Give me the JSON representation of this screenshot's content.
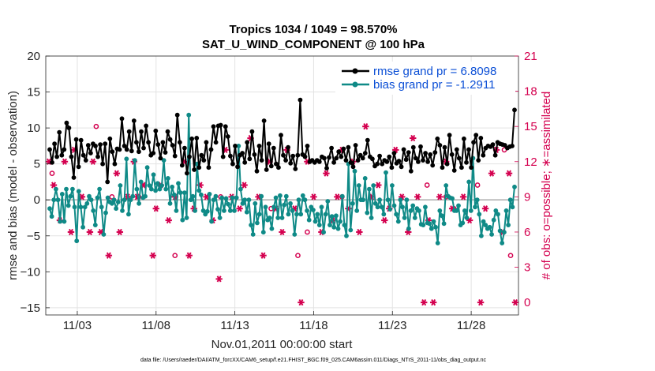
{
  "chart_data": {
    "type": "line",
    "title": "Tropics 1034 / 1049 = 98.570%",
    "subtitle": "SAT_U_WIND_COMPONENT @ 100 hPa",
    "xlabel": "Nov.01,2011 00:00:00 start",
    "ylabel": "rmse and bias (model - observation)",
    "y2label": "# of obs: o=possible; ∗=assimilated",
    "footnote": "data file: /Users/raeder/DAI/ATM_forcXX/CAM6_setup/f.e21.FHIST_BGC.f09_025.CAM6assim.011/Diags_NTrS_2011-11/obs_diag_output.nc",
    "xlim": [
      1.0,
      31.0
    ],
    "ylim": [
      -16,
      20
    ],
    "y2lim": [
      -1.0667,
      21
    ],
    "x_ticks": [
      3,
      8,
      13,
      18,
      23,
      28
    ],
    "x_tick_labels": [
      "11/03",
      "11/08",
      "11/13",
      "11/18",
      "11/23",
      "11/28"
    ],
    "y_ticks": [
      -15,
      -10,
      -5,
      0,
      5,
      10,
      15,
      20
    ],
    "y_tick_labels": [
      "−15",
      "−10",
      "−5",
      "0",
      "5",
      "10",
      "15",
      "20"
    ],
    "y2_ticks": [
      0,
      3,
      6,
      9,
      12,
      15,
      18,
      21
    ],
    "y2_tick_labels": [
      "0",
      "3",
      "6",
      "9",
      "12",
      "15",
      "18",
      "21"
    ],
    "grid": true,
    "legend_position": "top-right",
    "colors": {
      "rmse": "#000000",
      "bias": "#0f8a87",
      "obs": "#d4004f",
      "zero_line": "#b3b3b3",
      "legend_text": "#0b4fd6"
    },
    "series": [
      {
        "name": "rmse grand pr = 6.8098",
        "values": [
          7.0,
          5.2,
          7.8,
          6.0,
          9.4,
          6.2,
          7.0,
          10.7,
          10.0,
          6.0,
          3.1,
          8.4,
          4.6,
          8.3,
          6.2,
          5.5,
          7.6,
          6.5,
          7.8,
          7.5,
          6.0,
          7.7,
          5.0,
          7.8,
          2.5,
          8.5,
          6.7,
          5.0,
          7.1,
          7.0,
          11.3,
          7.5,
          7.0,
          9.5,
          6.8,
          11.0,
          8.0,
          6.7,
          9.5,
          7.2,
          10.3,
          8.0,
          6.2,
          6.5,
          9.6,
          7.7,
          5.8,
          8.0,
          6.6,
          9.5,
          8.4,
          7.6,
          6.1,
          11.8,
          8.0,
          4.8,
          7.2,
          3.7,
          6.0,
          8.5,
          4.2,
          8.6,
          4.5,
          6.2,
          5.5,
          8.0,
          4.5,
          7.0,
          10.2,
          8.0,
          10.3,
          10.4,
          6.0,
          10.2,
          8.8,
          6.1,
          5.0,
          7.5,
          4.6,
          6.2,
          6.5,
          5.2,
          8.0,
          5.7,
          9.5,
          6.3,
          4.0,
          7.5,
          5.5,
          11.0,
          4.2,
          7.8,
          4.7,
          7.2,
          5.0,
          4.5,
          9.0,
          6.2,
          5.5,
          7.3,
          5.1,
          6.1,
          4.3,
          6.2,
          13.9,
          6.3,
          6.0,
          7.5,
          5.3,
          5.5,
          5.2,
          5.5,
          5.3,
          6.0,
          5.8,
          4.4,
          5.9,
          7.2,
          5.2,
          5.8,
          6.7,
          6.0,
          7.1,
          5.5,
          7.3,
          5.2,
          4.6,
          7.6,
          5.5,
          6.2,
          5.8,
          6.5,
          8.3,
          6.0,
          5.7,
          4.7,
          5.0,
          6.1,
          5.0,
          5.5,
          5.3,
          6.0,
          4.5,
          6.5,
          5.1,
          5.4,
          4.6,
          7.0,
          5.6,
          6.6,
          4.0,
          7.3,
          5.8,
          5.3,
          7.4,
          5.5,
          6.5,
          5.3,
          6.3,
          4.8,
          6.6,
          8.5,
          7.6,
          4.5,
          7.3,
          5.0,
          9.0,
          6.3,
          4.1,
          7.0,
          5.8,
          4.5,
          8.5,
          5.2,
          7.0,
          4.5,
          8.0,
          9.0,
          5.5,
          8.6,
          6.2,
          7.2,
          7.5,
          7.4,
          7.7,
          6.2,
          8.0,
          7.8,
          7.7,
          7.6,
          7.2,
          7.4,
          7.5,
          12.5
        ]
      },
      {
        "name": "bias grand pr = -1.2911",
        "values": [
          -1.2,
          -2.3,
          0.0,
          1.5,
          0.0,
          -3.0,
          0.8,
          -3.0,
          1.5,
          -0.8,
          0.5,
          1.5,
          -1.0,
          -5.7,
          1.2,
          -1.0,
          -3.8,
          -1.0,
          -0.5,
          0.5,
          0.0,
          -1.5,
          -3.5,
          0.3,
          1.5,
          -1.0,
          -4.8,
          -1.8,
          0.3,
          -0.3,
          -0.5,
          0.0,
          -1.2,
          -0.3,
          2.0,
          -1.5,
          0.0,
          5.7,
          -2.0,
          0.0,
          0.5,
          5.5,
          1.5,
          -0.5,
          2.5,
          0.3,
          0.5,
          4.5,
          2.0,
          1.5,
          3.5,
          1.3,
          2.3,
          1.5,
          2.0,
          5.5,
          1.5,
          3.0,
          -0.5,
          1.8,
          0.7,
          -1.5,
          2.3,
          1.0,
          -2.8,
          1.0,
          -2.5,
          11.8,
          0.0,
          0.5,
          -1.5,
          5.0,
          1.3,
          0.7,
          -1.5,
          -2.0,
          -1.6,
          0.8,
          -3.0,
          0.0,
          0.5,
          -1.3,
          -2.5,
          0.3,
          -1.5,
          0.2,
          -0.6,
          -1.5,
          0.3,
          -1.5,
          0.3,
          7.5,
          1.5,
          -0.5,
          0.0,
          -1.7,
          0.0,
          -3.5,
          -4.8,
          -0.5,
          -3.2,
          -2.0,
          0.5,
          -4.5,
          -1.0,
          -2.8,
          -2.5,
          -4.0,
          -1.0,
          0.3,
          -2.5,
          0.6,
          -2.5,
          -0.7,
          0.5,
          -2.0,
          -0.5,
          -1.5,
          -4.8,
          -2.0,
          0.0,
          -2.0,
          0.6,
          0.0,
          -1.5,
          -2.8,
          -1.0,
          -1.4,
          -3.0,
          -2.0,
          -3.5,
          -1.0,
          -4.5,
          -2.0,
          -0.2,
          -3.5,
          -2.3,
          -3.8,
          -2.2,
          -4.0,
          -3.0,
          0.5,
          -3.5,
          -5.0,
          5.0,
          -4.2,
          -0.5,
          4.0,
          -1.5,
          2.0,
          0.0,
          0.0,
          3.0,
          -1.8,
          1.5,
          -2.5,
          2.0,
          -0.5,
          -1.0,
          0.0,
          -1.0,
          -2.0,
          3.8,
          0.0,
          -1.3,
          2.0,
          -0.8,
          -2.0,
          -3.0,
          0.0,
          -1.0,
          -2.5,
          0.0,
          -4.0,
          -1.5,
          -0.8,
          -2.5,
          -1.2,
          -1.5,
          -3.4,
          -3.5,
          -1.0,
          -3.2,
          -3.3,
          -4.0,
          -3.0,
          -3.8,
          -6.0,
          -1.5,
          -2.2,
          -3.3,
          2.0,
          0.5,
          0.3,
          0.2,
          -1.5,
          -1.5,
          -0.8,
          -3.5,
          -3.2,
          -1.5,
          -2.5,
          2.5,
          -1.5,
          5.8,
          -1.0,
          0.0,
          -2.0,
          -5.0,
          -3.0,
          -3.5,
          -4.0,
          -3.8,
          -4.8,
          -2.8,
          -1.5,
          -2.0,
          -4.3,
          -6.0,
          -4.5,
          -1.5,
          -3.5,
          0.0,
          -1.0,
          1.8
        ]
      }
    ],
    "obs_assimilated": {
      "x": [
        1.2,
        1.5,
        1.9,
        2.2,
        2.6,
        2.8,
        3.3,
        3.8,
        4.0,
        4.5,
        5.0,
        5.5,
        5.7,
        6.2,
        6.6,
        6.8,
        7.2,
        7.8,
        8.0,
        8.3,
        8.8,
        9.2,
        9.8,
        10.1,
        10.4,
        10.8,
        11.2,
        11.6,
        12.0,
        12.4,
        12.8,
        13.3,
        13.6,
        14.0,
        14.5,
        14.8,
        15.2,
        15.6,
        16.0,
        16.3,
        16.8,
        17.2,
        17.6,
        18.0,
        18.5,
        18.8,
        19.2,
        19.5,
        19.8,
        20.2,
        20.5,
        20.9,
        21.3,
        21.7,
        22.1,
        22.5,
        22.8,
        23.2,
        23.6,
        24.0,
        24.3,
        24.6,
        25.0,
        25.3,
        25.6,
        26.0,
        26.4,
        26.8,
        27.2,
        27.5,
        27.9,
        28.2,
        28.6,
        28.9,
        29.3,
        29.6,
        30.0,
        30.4,
        30.8
      ],
      "values": [
        12,
        10,
        7,
        12,
        6,
        13,
        9,
        6,
        12,
        6,
        4,
        11,
        6,
        9,
        12,
        9,
        10,
        4,
        8,
        10,
        7,
        9,
        12,
        4,
        8,
        10,
        9,
        7,
        2,
        13,
        9,
        8,
        10,
        14,
        9,
        4,
        12,
        8,
        6,
        13,
        8,
        0,
        12,
        9,
        6,
        11,
        7,
        9,
        13,
        8,
        12,
        6,
        15,
        9,
        10,
        7,
        8,
        13,
        9,
        6,
        14,
        9,
        0,
        7,
        0,
        9,
        12,
        8,
        18,
        9,
        7,
        20,
        0,
        8,
        11,
        13,
        6,
        11,
        0
      ],
      "marker": "asterisk"
    },
    "obs_possible": {
      "x": [
        1.4,
        4.2,
        5.2,
        6.9,
        9.2,
        12.1,
        15.3,
        17.0,
        17.6,
        19.8,
        25.2,
        26.4,
        26.9,
        27.4,
        28.4,
        30.1,
        30.5
      ],
      "values": [
        11,
        15,
        9,
        9,
        4,
        9,
        8,
        4,
        6,
        9,
        10,
        9,
        8,
        18,
        10,
        13,
        4
      ],
      "marker": "circle"
    }
  }
}
